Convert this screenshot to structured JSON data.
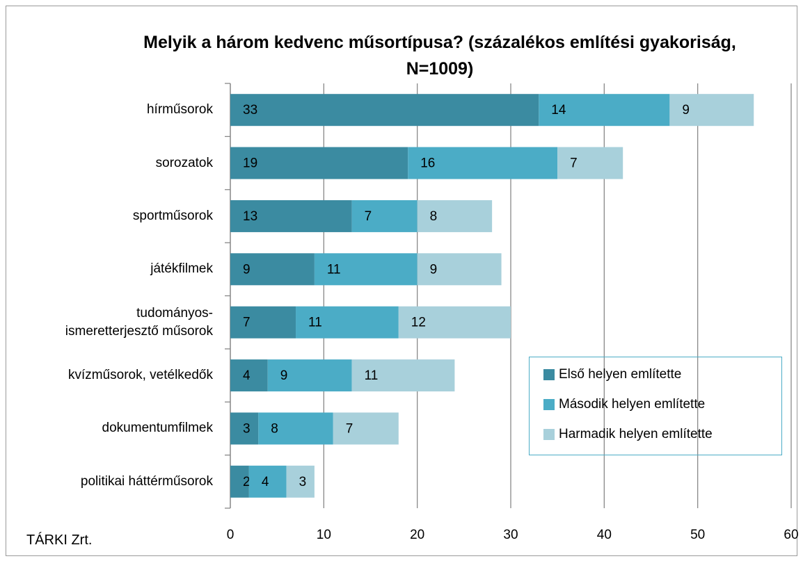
{
  "chart_data": {
    "type": "stacked-barh",
    "title": "Melyik a három kedvenc műsortípusa? (százalékos említési gyakoriság, N=1009)",
    "source": "TÁRKI Zrt.",
    "categories": [
      "hírműsorok",
      "sorozatok",
      "sportműsorok",
      "játékfilmek",
      "tudományos-\nismeretterjesztő műsorok",
      "kvízműsorok, vetélkedők",
      "dokumentumfilmek",
      "politikai háttérműsorok"
    ],
    "series": [
      {
        "name": "Első helyen említette",
        "color": "#3b8ba1",
        "values": [
          33,
          19,
          13,
          9,
          7,
          4,
          3,
          2
        ]
      },
      {
        "name": "Második helyen említette",
        "color": "#4bacc6",
        "values": [
          14,
          16,
          7,
          11,
          11,
          9,
          8,
          4
        ]
      },
      {
        "name": "Harmadik helyen említette",
        "color": "#a8d0db",
        "values": [
          9,
          7,
          8,
          9,
          12,
          11,
          7,
          3
        ]
      }
    ],
    "xlim": [
      0,
      60
    ],
    "xticks": [
      0,
      10,
      20,
      30,
      40,
      50,
      60
    ],
    "grid": true
  }
}
